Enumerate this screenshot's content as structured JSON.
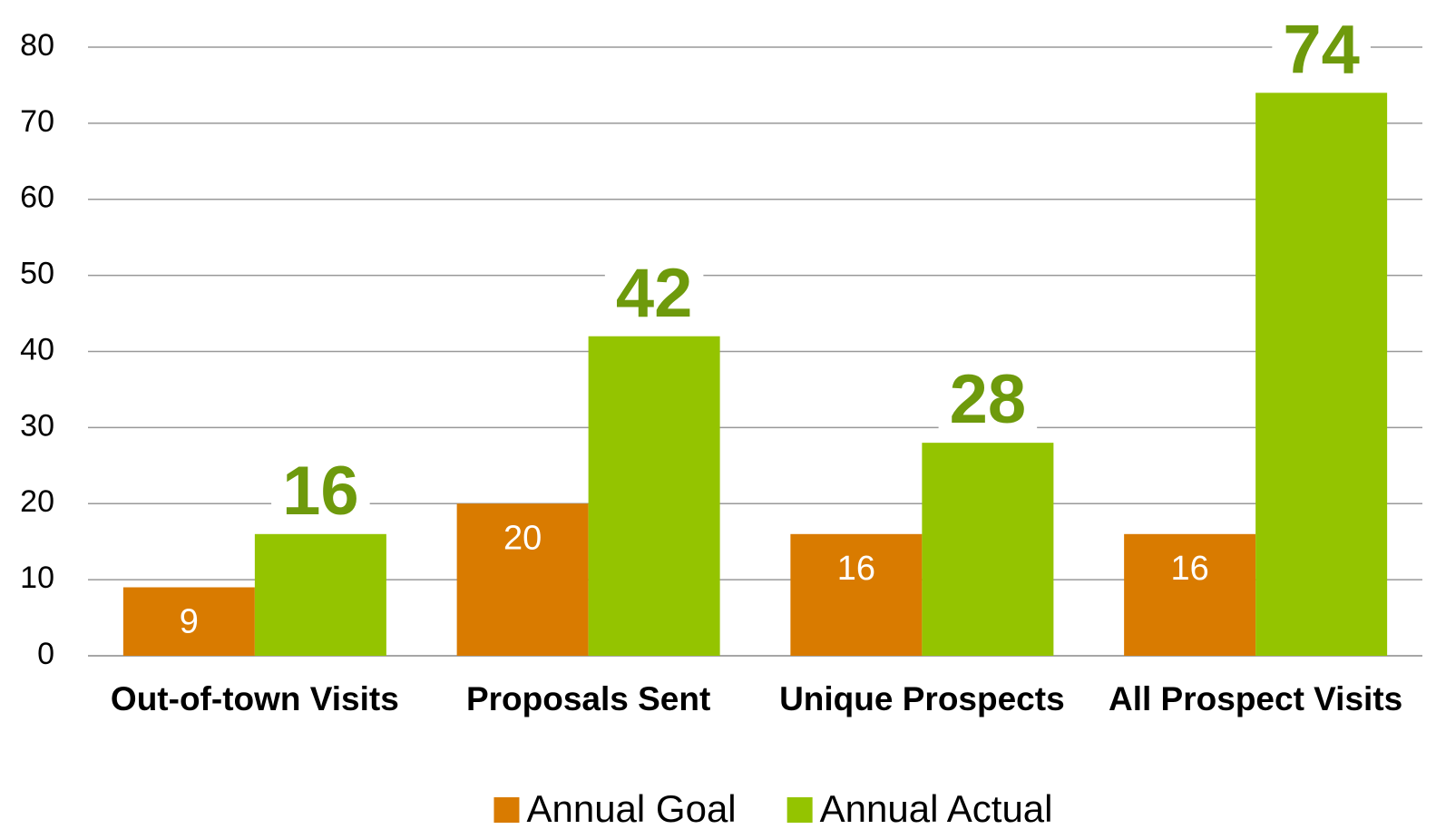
{
  "chart_data": {
    "type": "bar",
    "categories": [
      "Out-of-town Visits",
      "Proposals Sent",
      "Unique Prospects",
      "All Prospect Visits"
    ],
    "series": [
      {
        "name": "Annual Goal",
        "color": "#d97b00",
        "values": [
          9,
          20,
          16,
          16
        ]
      },
      {
        "name": "Annual Actual",
        "color": "#94c400",
        "values": [
          16,
          42,
          28,
          74
        ]
      }
    ],
    "ylim": [
      0,
      80
    ],
    "yticks": [
      0,
      10,
      20,
      30,
      40,
      50,
      60,
      70,
      80
    ],
    "grid": true,
    "legend": "bottom"
  }
}
